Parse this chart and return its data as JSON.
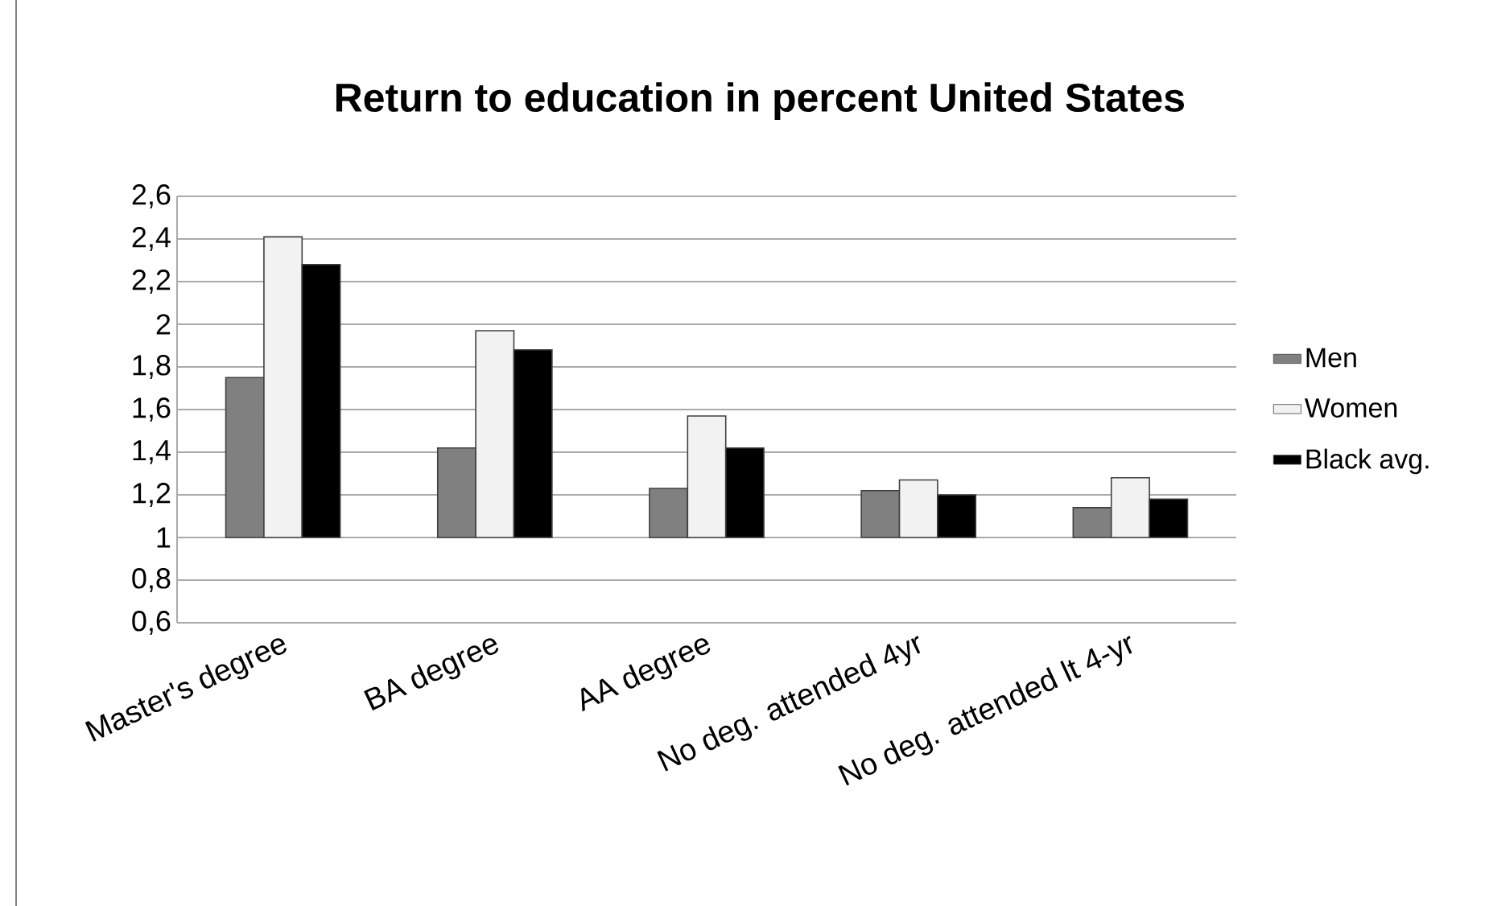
{
  "chart_data": {
    "type": "bar",
    "title": "Return to education in percent United States",
    "categories": [
      "Master's degree",
      "BA degree",
      "AA degree",
      "No deg. attended 4yr",
      "No deg. attended lt 4-yr"
    ],
    "series": [
      {
        "name": "Men",
        "color": "#808080",
        "base": [
          1,
          1,
          1,
          1,
          1
        ],
        "values": [
          0.75,
          0.42,
          0.23,
          0.22,
          0.14
        ]
      },
      {
        "name": "Women",
        "color": "#f2f2f2",
        "base": [
          1,
          1,
          1,
          1,
          1
        ],
        "values": [
          1.41,
          0.97,
          0.57,
          0.27,
          0.28
        ]
      },
      {
        "name": "Black avg.",
        "color": "#000000",
        "base": [
          1,
          1,
          1,
          1,
          1
        ],
        "values": [
          1.28,
          0.88,
          0.42,
          0.2,
          0.18
        ]
      }
    ],
    "ylim": [
      0.6,
      2.6
    ],
    "yticks": [
      {
        "value": 0.6,
        "label": "0,6"
      },
      {
        "value": 0.8,
        "label": "0,8"
      },
      1,
      {
        "value": 1.2,
        "label": "1,2"
      },
      {
        "value": 1.4,
        "label": "1,4"
      },
      {
        "value": 1.6,
        "label": "1,6"
      },
      {
        "value": 1.8,
        "label": "1,8"
      },
      2,
      {
        "value": 2.2,
        "label": "2,2"
      },
      {
        "value": 2.4,
        "label": "2,4"
      },
      {
        "value": 2.6,
        "label": "2,6"
      }
    ],
    "grid": "y",
    "legend": "right"
  }
}
